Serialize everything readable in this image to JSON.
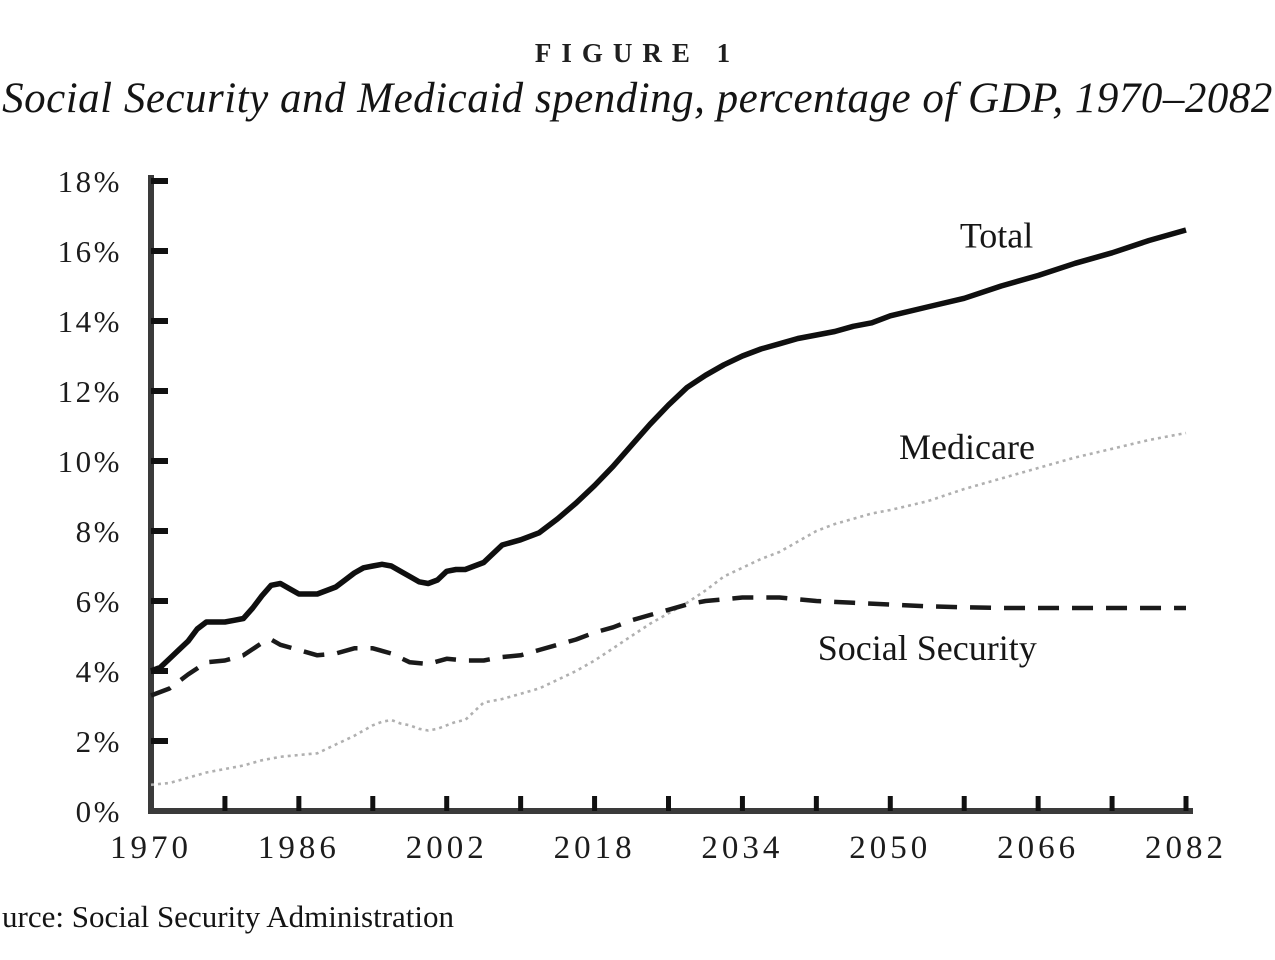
{
  "chart_data": {
    "type": "line",
    "title": "FIGURE 1",
    "subtitle": "Social Security and Medicaid spending, percentage of GDP, 1970–2082",
    "source": "urce: Social Security Administration",
    "xlabel": "",
    "ylabel": "",
    "grid": false,
    "legend": "inline-labels",
    "x_axis": {
      "min": 1970,
      "max": 2082,
      "minor_tick_step": 8,
      "labels": [
        {
          "year": 1970,
          "text": "1970"
        },
        {
          "year": 1986,
          "text": "1986"
        },
        {
          "year": 2002,
          "text": "2002"
        },
        {
          "year": 2018,
          "text": "2018"
        },
        {
          "year": 2034,
          "text": "2034"
        },
        {
          "year": 2050,
          "text": "2050"
        },
        {
          "year": 2066,
          "text": "2066"
        },
        {
          "year": 2082,
          "text": "2082"
        }
      ]
    },
    "y_axis": {
      "min": 0,
      "max": 18,
      "tick_step": 2,
      "labels": [
        "0%",
        "2%",
        "4%",
        "6%",
        "8%",
        "10%",
        "12%",
        "14%",
        "16%",
        "18%"
      ]
    },
    "series": [
      {
        "name": "Total",
        "style": "solid",
        "color": "#0f0f0f",
        "width": 5.5,
        "label_anchor": {
          "x": 2061.5,
          "y": 16.45
        },
        "points": [
          [
            1970,
            4.0
          ],
          [
            1971,
            4.1
          ],
          [
            1972,
            4.35
          ],
          [
            1973,
            4.6
          ],
          [
            1974,
            4.85
          ],
          [
            1975,
            5.2
          ],
          [
            1976,
            5.4
          ],
          [
            1977,
            5.4
          ],
          [
            1978,
            5.4
          ],
          [
            1979,
            5.45
          ],
          [
            1980,
            5.5
          ],
          [
            1981,
            5.8
          ],
          [
            1982,
            6.15
          ],
          [
            1983,
            6.45
          ],
          [
            1984,
            6.5
          ],
          [
            1985,
            6.35
          ],
          [
            1986,
            6.2
          ],
          [
            1987,
            6.2
          ],
          [
            1988,
            6.2
          ],
          [
            1989,
            6.3
          ],
          [
            1990,
            6.4
          ],
          [
            1991,
            6.6
          ],
          [
            1992,
            6.8
          ],
          [
            1993,
            6.95
          ],
          [
            1994,
            7.0
          ],
          [
            1995,
            7.05
          ],
          [
            1996,
            7.0
          ],
          [
            1997,
            6.85
          ],
          [
            1998,
            6.7
          ],
          [
            1999,
            6.55
          ],
          [
            2000,
            6.5
          ],
          [
            2001,
            6.6
          ],
          [
            2002,
            6.85
          ],
          [
            2003,
            6.9
          ],
          [
            2004,
            6.9
          ],
          [
            2005,
            7.0
          ],
          [
            2006,
            7.1
          ],
          [
            2007,
            7.35
          ],
          [
            2008,
            7.6
          ],
          [
            2010,
            7.75
          ],
          [
            2012,
            7.95
          ],
          [
            2014,
            8.35
          ],
          [
            2016,
            8.8
          ],
          [
            2018,
            9.3
          ],
          [
            2020,
            9.85
          ],
          [
            2022,
            10.45
          ],
          [
            2024,
            11.05
          ],
          [
            2026,
            11.6
          ],
          [
            2028,
            12.1
          ],
          [
            2030,
            12.45
          ],
          [
            2032,
            12.75
          ],
          [
            2034,
            13.0
          ],
          [
            2036,
            13.2
          ],
          [
            2038,
            13.35
          ],
          [
            2040,
            13.5
          ],
          [
            2042,
            13.6
          ],
          [
            2044,
            13.7
          ],
          [
            2046,
            13.85
          ],
          [
            2048,
            13.95
          ],
          [
            2050,
            14.15
          ],
          [
            2054,
            14.4
          ],
          [
            2058,
            14.65
          ],
          [
            2062,
            15.0
          ],
          [
            2066,
            15.3
          ],
          [
            2070,
            15.65
          ],
          [
            2074,
            15.95
          ],
          [
            2078,
            16.3
          ],
          [
            2082,
            16.6
          ]
        ]
      },
      {
        "name": "Medicare",
        "style": "dotted",
        "color": "#b0b0b0",
        "width": 2.6,
        "label_anchor": {
          "x": 2058.3,
          "y": 10.4
        },
        "points": [
          [
            1970,
            0.75
          ],
          [
            1972,
            0.8
          ],
          [
            1974,
            0.95
          ],
          [
            1976,
            1.1
          ],
          [
            1978,
            1.2
          ],
          [
            1980,
            1.3
          ],
          [
            1982,
            1.45
          ],
          [
            1984,
            1.55
          ],
          [
            1986,
            1.6
          ],
          [
            1988,
            1.65
          ],
          [
            1990,
            1.9
          ],
          [
            1992,
            2.15
          ],
          [
            1994,
            2.45
          ],
          [
            1995,
            2.55
          ],
          [
            1996,
            2.6
          ],
          [
            1997,
            2.5
          ],
          [
            1998,
            2.45
          ],
          [
            1999,
            2.35
          ],
          [
            2000,
            2.3
          ],
          [
            2001,
            2.35
          ],
          [
            2002,
            2.45
          ],
          [
            2003,
            2.55
          ],
          [
            2004,
            2.6
          ],
          [
            2005,
            2.85
          ],
          [
            2006,
            3.1
          ],
          [
            2008,
            3.2
          ],
          [
            2010,
            3.35
          ],
          [
            2012,
            3.5
          ],
          [
            2014,
            3.75
          ],
          [
            2016,
            4.0
          ],
          [
            2018,
            4.3
          ],
          [
            2020,
            4.65
          ],
          [
            2022,
            5.0
          ],
          [
            2024,
            5.35
          ],
          [
            2026,
            5.65
          ],
          [
            2028,
            5.95
          ],
          [
            2030,
            6.3
          ],
          [
            2032,
            6.7
          ],
          [
            2034,
            6.95
          ],
          [
            2036,
            7.2
          ],
          [
            2038,
            7.4
          ],
          [
            2040,
            7.7
          ],
          [
            2042,
            8.0
          ],
          [
            2044,
            8.2
          ],
          [
            2046,
            8.35
          ],
          [
            2048,
            8.5
          ],
          [
            2050,
            8.6
          ],
          [
            2054,
            8.85
          ],
          [
            2058,
            9.2
          ],
          [
            2062,
            9.5
          ],
          [
            2066,
            9.8
          ],
          [
            2070,
            10.1
          ],
          [
            2074,
            10.35
          ],
          [
            2078,
            10.6
          ],
          [
            2082,
            10.8
          ]
        ]
      },
      {
        "name": "Social Security",
        "style": "dashed",
        "color": "#1a1a1a",
        "width": 4.5,
        "label_anchor": {
          "x": 2054,
          "y": 4.66
        },
        "points": [
          [
            1970,
            3.3
          ],
          [
            1972,
            3.5
          ],
          [
            1974,
            3.9
          ],
          [
            1976,
            4.25
          ],
          [
            1978,
            4.3
          ],
          [
            1980,
            4.45
          ],
          [
            1982,
            4.8
          ],
          [
            1983,
            4.9
          ],
          [
            1984,
            4.75
          ],
          [
            1986,
            4.6
          ],
          [
            1988,
            4.45
          ],
          [
            1990,
            4.5
          ],
          [
            1992,
            4.65
          ],
          [
            1994,
            4.65
          ],
          [
            1996,
            4.5
          ],
          [
            1998,
            4.25
          ],
          [
            2000,
            4.2
          ],
          [
            2002,
            4.35
          ],
          [
            2004,
            4.3
          ],
          [
            2006,
            4.3
          ],
          [
            2008,
            4.4
          ],
          [
            2010,
            4.45
          ],
          [
            2012,
            4.6
          ],
          [
            2014,
            4.75
          ],
          [
            2016,
            4.9
          ],
          [
            2018,
            5.1
          ],
          [
            2020,
            5.25
          ],
          [
            2022,
            5.45
          ],
          [
            2024,
            5.6
          ],
          [
            2026,
            5.75
          ],
          [
            2028,
            5.9
          ],
          [
            2030,
            6.0
          ],
          [
            2032,
            6.05
          ],
          [
            2034,
            6.1
          ],
          [
            2038,
            6.1
          ],
          [
            2042,
            6.0
          ],
          [
            2046,
            5.95
          ],
          [
            2050,
            5.9
          ],
          [
            2054,
            5.85
          ],
          [
            2058,
            5.82
          ],
          [
            2062,
            5.8
          ],
          [
            2066,
            5.8
          ],
          [
            2070,
            5.8
          ],
          [
            2074,
            5.8
          ],
          [
            2078,
            5.8
          ],
          [
            2082,
            5.8
          ]
        ]
      }
    ]
  }
}
